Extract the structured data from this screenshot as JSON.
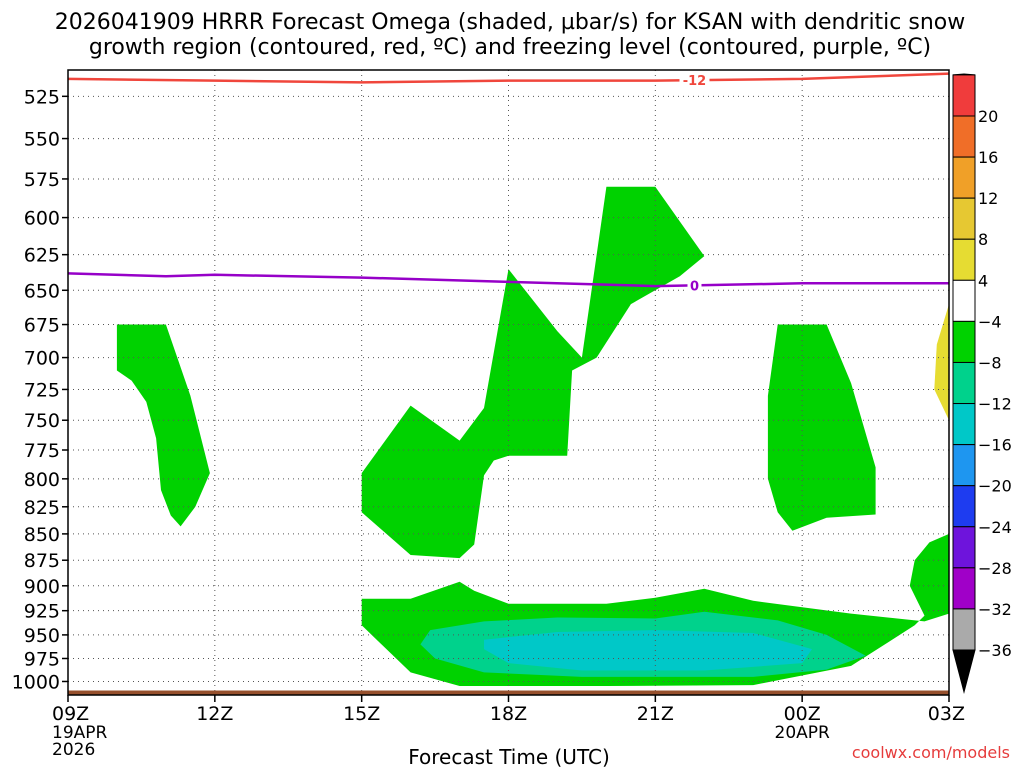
{
  "title_line1": "2026041909 HRRR Forecast Omega (shaded, µbar/s) for KSAN with dendritic snow",
  "title_line2": "growth region (contoured, red, ºC) and freezing level (contoured, purple, ºC)",
  "xlabel": "Forecast Time (UTC)",
  "watermark": "coolwx.com/models",
  "colors": {
    "omega_green": "#00d200",
    "omega_teal": "#00d28c",
    "omega_cyan": "#00c8c8",
    "omega_yellow": "#e6dc32",
    "dgz_line": "#f0463c",
    "freezing_line": "#9600c8",
    "ground": "#96502d"
  },
  "chart_data": {
    "type": "time-height contour",
    "x_ticks": [
      {
        "hour": 0,
        "label": "09Z",
        "sub1": "19APR",
        "sub2": "2026"
      },
      {
        "hour": 3,
        "label": "12Z",
        "sub1": "",
        "sub2": ""
      },
      {
        "hour": 6,
        "label": "15Z",
        "sub1": "",
        "sub2": ""
      },
      {
        "hour": 9,
        "label": "18Z",
        "sub1": "",
        "sub2": ""
      },
      {
        "hour": 12,
        "label": "21Z",
        "sub1": "",
        "sub2": ""
      },
      {
        "hour": 15,
        "label": "00Z",
        "sub1": "20APR",
        "sub2": ""
      },
      {
        "hour": 18,
        "label": "03Z",
        "sub1": "",
        "sub2": ""
      }
    ],
    "xlim_hours": [
      0,
      18
    ],
    "y_ticks": [
      525,
      550,
      575,
      600,
      625,
      650,
      675,
      700,
      725,
      750,
      775,
      800,
      825,
      850,
      875,
      900,
      925,
      950,
      975,
      1000
    ],
    "ylim_mb": [
      510,
      1015
    ],
    "y_scale": "log-pressure",
    "grid": true,
    "colorbar": {
      "labels": [
        "20",
        "16",
        "12",
        "8",
        "4",
        "−4",
        "−8",
        "−12",
        "−16",
        "−20",
        "−24",
        "−28",
        "−32",
        "−36"
      ],
      "bins": [
        "#e6147d",
        "#f03c3c",
        "#f06e28",
        "#f0a028",
        "#e6c832",
        "#e6dc32",
        "#ffffff",
        "#00d200",
        "#00d28c",
        "#00c8c8",
        "#1e96f0",
        "#1e3cf0",
        "#6e14dc",
        "#a000c8",
        "#aaaaaa",
        "#000000"
      ]
    },
    "dgz_contour": {
      "label": "-12",
      "label_hour": 12.8,
      "points": [
        [
          0,
          515
        ],
        [
          3,
          516
        ],
        [
          6,
          517
        ],
        [
          9,
          516
        ],
        [
          12,
          516
        ],
        [
          15,
          515
        ],
        [
          18,
          512
        ]
      ]
    },
    "freezing_contour": {
      "label": "0",
      "label_hour": 12.8,
      "points": [
        [
          0,
          638
        ],
        [
          2,
          640
        ],
        [
          3,
          639
        ],
        [
          6,
          641
        ],
        [
          9,
          644
        ],
        [
          12,
          647
        ],
        [
          15,
          645
        ],
        [
          18,
          645
        ]
      ]
    },
    "ground_mb": 1010,
    "shaded_regions": [
      {
        "value": "-4 to -8",
        "color": "#00d200",
        "points": [
          [
            1,
            675
          ],
          [
            2,
            675
          ],
          [
            2.5,
            730
          ],
          [
            2.9,
            795
          ],
          [
            2.6,
            825
          ],
          [
            2.3,
            843
          ],
          [
            2.1,
            833
          ],
          [
            1.9,
            810
          ],
          [
            1.8,
            765
          ],
          [
            1.6,
            735
          ],
          [
            1.3,
            718
          ],
          [
            1,
            710
          ]
        ]
      },
      {
        "value": "-4 to -8",
        "color": "#00d200",
        "points": [
          [
            6,
            795
          ],
          [
            7,
            738
          ],
          [
            8,
            767
          ],
          [
            8.5,
            740
          ],
          [
            9,
            635
          ],
          [
            10,
            680
          ],
          [
            10.5,
            700
          ],
          [
            11,
            580
          ],
          [
            12,
            580
          ],
          [
            13,
            626
          ],
          [
            12.5,
            640
          ],
          [
            11.5,
            660
          ],
          [
            10.8,
            700
          ],
          [
            10.3,
            710
          ],
          [
            10.2,
            780
          ],
          [
            9,
            780
          ],
          [
            8.7,
            784
          ],
          [
            8.5,
            797
          ],
          [
            8.3,
            860
          ],
          [
            8,
            873
          ],
          [
            7,
            870
          ],
          [
            6,
            830
          ]
        ]
      },
      {
        "value": "-4 to -8",
        "color": "#00d200",
        "points": [
          [
            14.5,
            675
          ],
          [
            15.5,
            675
          ],
          [
            16,
            720
          ],
          [
            16.5,
            790
          ],
          [
            16.5,
            832
          ],
          [
            15.5,
            835
          ],
          [
            14.8,
            847
          ],
          [
            14.5,
            830
          ],
          [
            14.3,
            800
          ],
          [
            14.3,
            730
          ]
        ]
      },
      {
        "value": "-4 to -8",
        "color": "#00d200",
        "points": [
          [
            6,
            913
          ],
          [
            7,
            913
          ],
          [
            8,
            896
          ],
          [
            8.3,
            905
          ],
          [
            9,
            918
          ],
          [
            11,
            918
          ],
          [
            12,
            912
          ],
          [
            13,
            903
          ],
          [
            14,
            915
          ],
          [
            16,
            928
          ],
          [
            17.5,
            936
          ],
          [
            18,
            928
          ],
          [
            18,
            850
          ],
          [
            17.6,
            858
          ],
          [
            17.3,
            875
          ],
          [
            17.2,
            900
          ],
          [
            17.5,
            930
          ],
          [
            17.3,
            940
          ],
          [
            16,
            983
          ],
          [
            14,
            1004
          ],
          [
            11,
            1005
          ],
          [
            9,
            1005
          ],
          [
            8,
            1005
          ],
          [
            7,
            990
          ],
          [
            6,
            940
          ]
        ]
      },
      {
        "value": "-8 to -12",
        "color": "#00d28c",
        "points": [
          [
            7.4,
            945
          ],
          [
            8.5,
            936
          ],
          [
            10,
            932
          ],
          [
            12,
            933
          ],
          [
            13,
            926
          ],
          [
            14.5,
            935
          ],
          [
            15.5,
            950
          ],
          [
            16.3,
            972
          ],
          [
            15.5,
            987
          ],
          [
            14,
            995
          ],
          [
            10.5,
            995
          ],
          [
            8.5,
            990
          ],
          [
            7.5,
            975
          ],
          [
            7.2,
            960
          ]
        ]
      },
      {
        "value": "-12 to -16",
        "color": "#00c8c8",
        "points": [
          [
            8.5,
            955
          ],
          [
            10,
            947
          ],
          [
            12,
            945
          ],
          [
            14,
            948
          ],
          [
            15.2,
            965
          ],
          [
            15,
            980
          ],
          [
            13,
            988
          ],
          [
            10.5,
            988
          ],
          [
            9,
            980
          ],
          [
            8.5,
            965
          ]
        ]
      },
      {
        "value": "4 to 8",
        "color": "#e6dc32",
        "points": [
          [
            18,
            660
          ],
          [
            18,
            750
          ],
          [
            17.7,
            725
          ],
          [
            17.75,
            690
          ]
        ]
      }
    ]
  }
}
